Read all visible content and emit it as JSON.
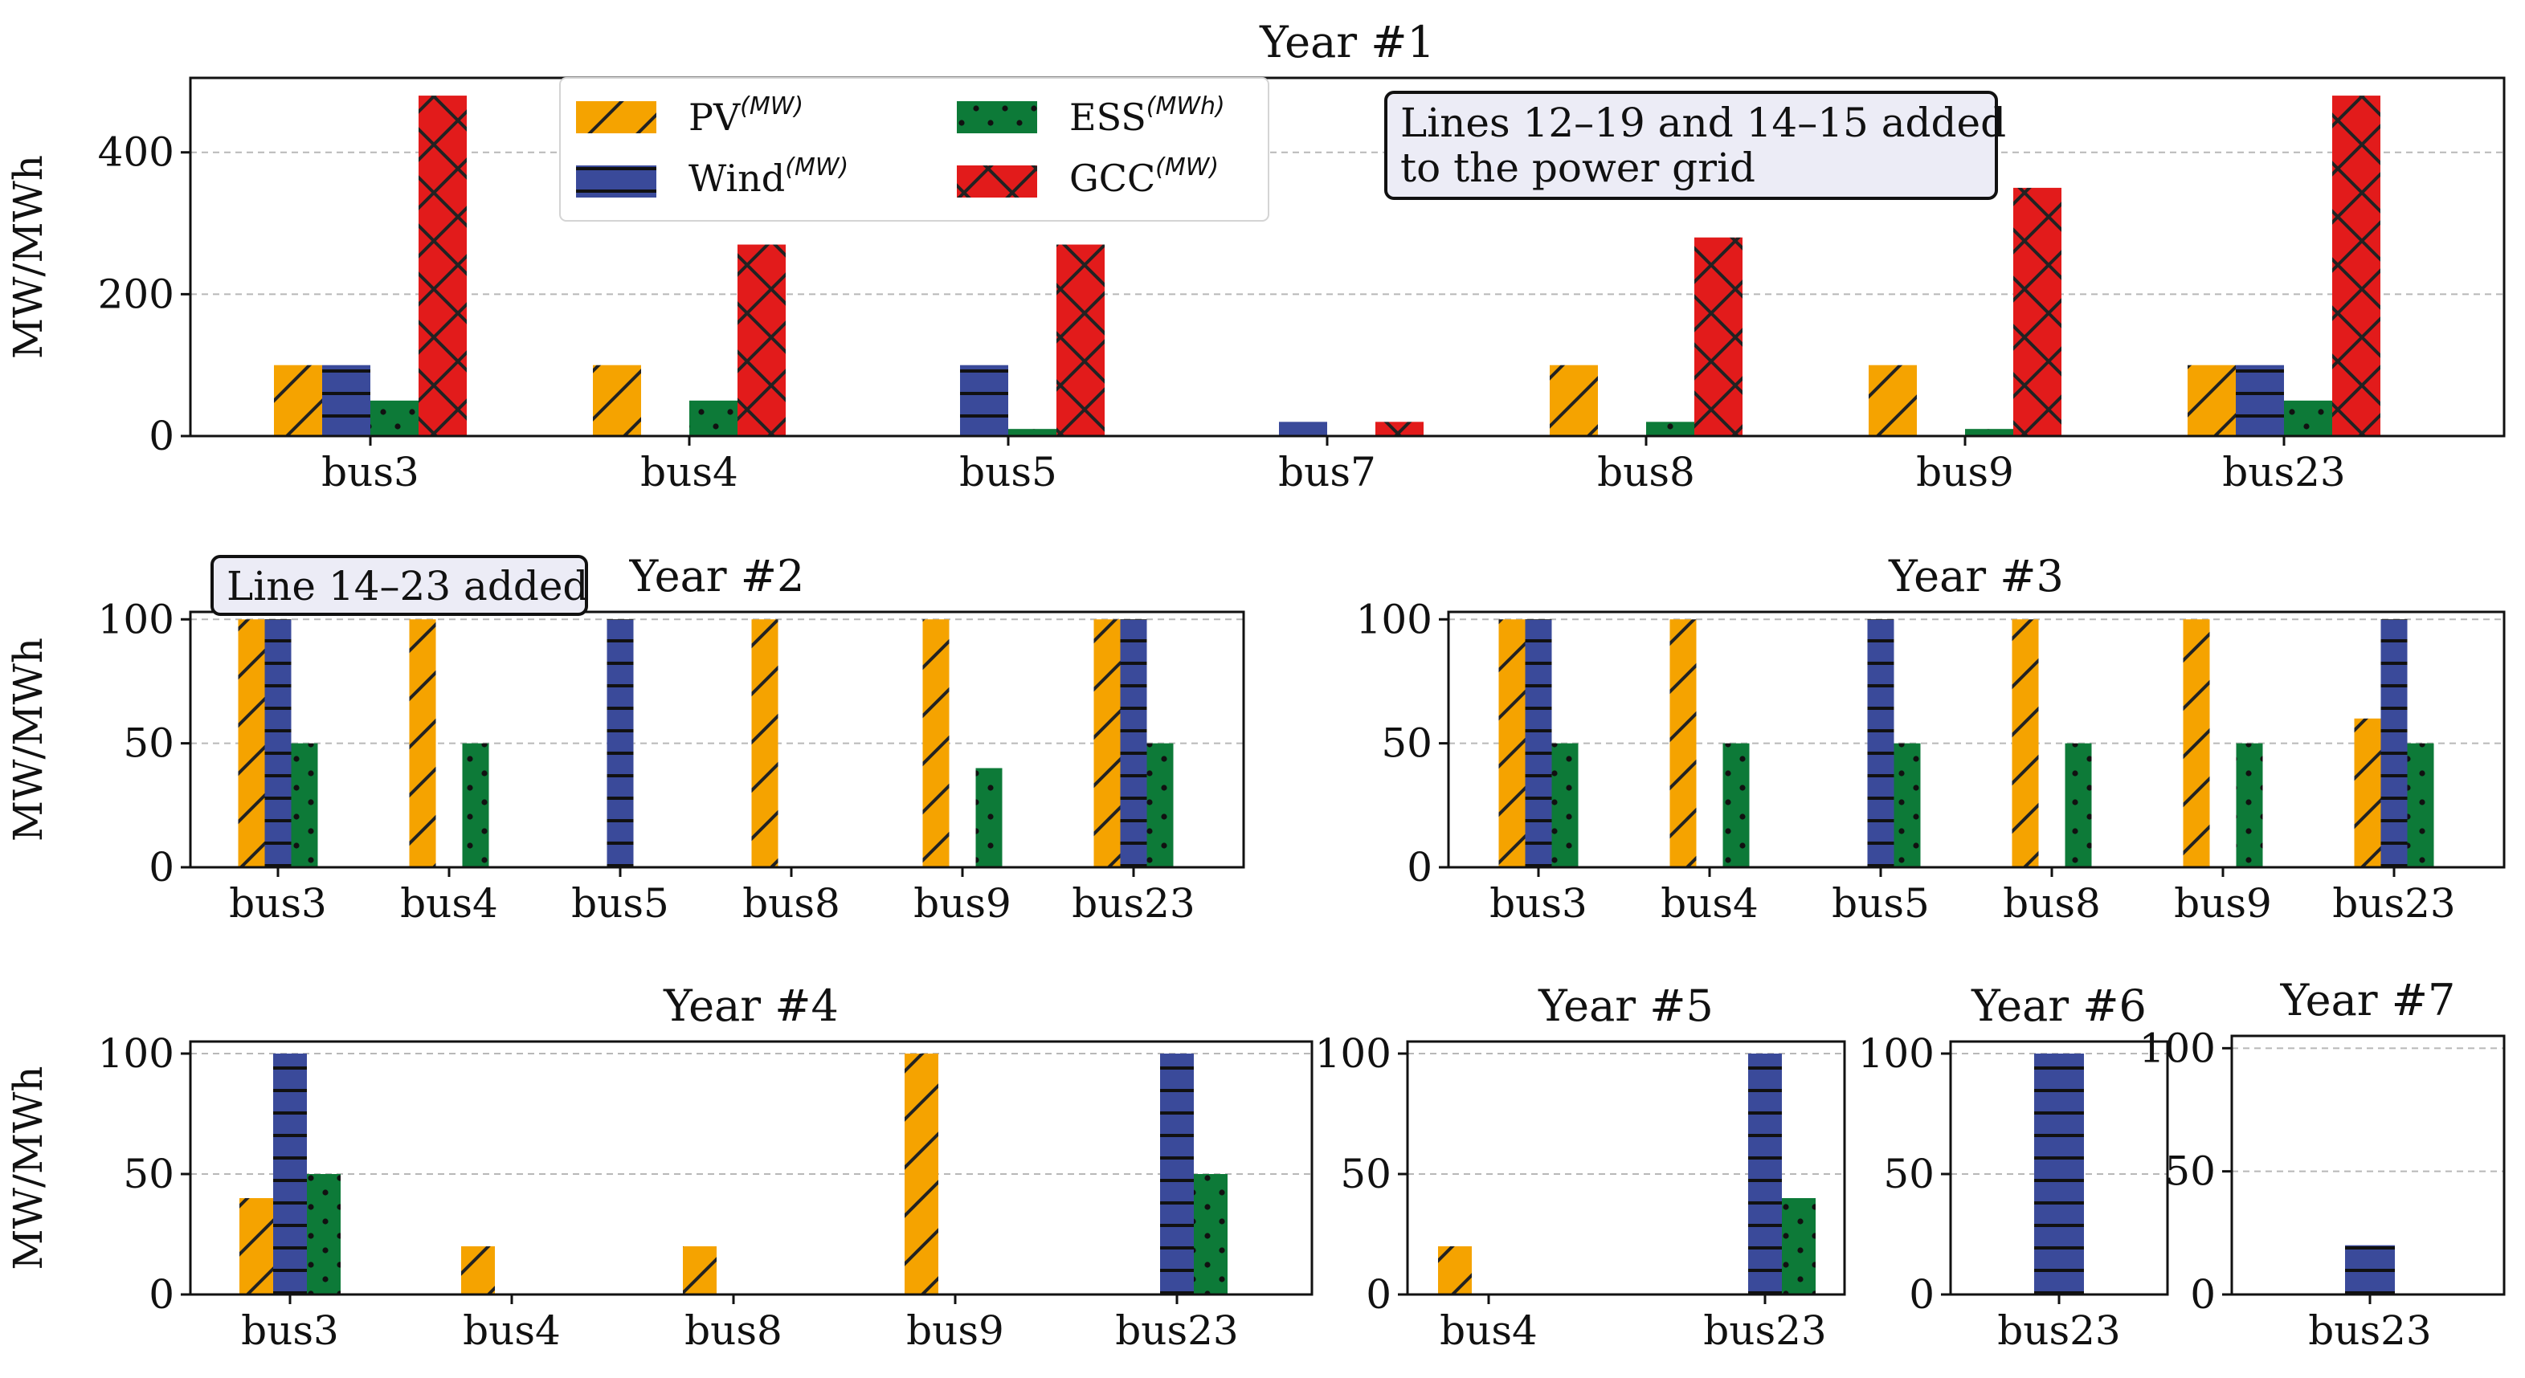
{
  "colors": {
    "PV": "#f5a300",
    "Wind": "#3a4a9a",
    "ESS": "#0d7a38",
    "GCC": "#e21b1b"
  },
  "legend": [
    {
      "key": "PV",
      "label": "PV",
      "unit": "(MW)"
    },
    {
      "key": "Wind",
      "label": "Wind",
      "unit": "(MW)"
    },
    {
      "key": "ESS",
      "label": "ESS",
      "unit": "(MWh)"
    },
    {
      "key": "GCC",
      "label": "GCC",
      "unit": "(MW)"
    }
  ],
  "annotations": {
    "year1": [
      "Lines 12–19 and 14–15 added",
      "to the power grid"
    ],
    "year2": "Line 14–23 added"
  },
  "chart_data": [
    {
      "type": "bar",
      "title": "Year #1",
      "ylabel": "MW/MWh",
      "ylim": [
        0,
        505
      ],
      "yticks": [
        0,
        200,
        400
      ],
      "categories": [
        "bus3",
        "bus4",
        "bus5",
        "bus7",
        "bus8",
        "bus9",
        "bus23"
      ],
      "series": [
        {
          "name": "PV",
          "values": [
            100,
            100,
            0,
            0,
            100,
            100,
            100
          ]
        },
        {
          "name": "Wind",
          "values": [
            100,
            0,
            100,
            20,
            0,
            0,
            100
          ]
        },
        {
          "name": "ESS",
          "values": [
            50,
            50,
            10,
            0,
            20,
            10,
            50
          ]
        },
        {
          "name": "GCC",
          "values": [
            480,
            270,
            270,
            20,
            280,
            350,
            480
          ]
        }
      ]
    },
    {
      "type": "bar",
      "title": "Year #2",
      "ylabel": "MW/MWh",
      "ylim": [
        0,
        103
      ],
      "yticks": [
        0,
        50,
        100
      ],
      "categories": [
        "bus3",
        "bus4",
        "bus5",
        "bus8",
        "bus9",
        "bus23"
      ],
      "series": [
        {
          "name": "PV",
          "values": [
            100,
            100,
            0,
            100,
            100,
            100
          ]
        },
        {
          "name": "Wind",
          "values": [
            100,
            0,
            100,
            0,
            0,
            100
          ]
        },
        {
          "name": "ESS",
          "values": [
            50,
            50,
            0,
            0,
            40,
            50
          ]
        }
      ]
    },
    {
      "type": "bar",
      "title": "Year #3",
      "ylabel": "",
      "ylim": [
        0,
        103
      ],
      "yticks": [
        0,
        50,
        100
      ],
      "categories": [
        "bus3",
        "bus4",
        "bus5",
        "bus8",
        "bus9",
        "bus23"
      ],
      "series": [
        {
          "name": "PV",
          "values": [
            100,
            100,
            0,
            100,
            100,
            60
          ]
        },
        {
          "name": "Wind",
          "values": [
            100,
            0,
            100,
            0,
            0,
            100
          ]
        },
        {
          "name": "ESS",
          "values": [
            50,
            50,
            50,
            50,
            50,
            50
          ]
        }
      ]
    },
    {
      "type": "bar",
      "title": "Year #4",
      "ylabel": "MW/MWh",
      "ylim": [
        0,
        105
      ],
      "yticks": [
        0,
        50,
        100
      ],
      "categories": [
        "bus3",
        "bus4",
        "bus8",
        "bus9",
        "bus23"
      ],
      "series": [
        {
          "name": "PV",
          "values": [
            40,
            20,
            20,
            100,
            0
          ]
        },
        {
          "name": "Wind",
          "values": [
            100,
            0,
            0,
            0,
            100
          ]
        },
        {
          "name": "ESS",
          "values": [
            50,
            0,
            0,
            0,
            50
          ]
        }
      ]
    },
    {
      "type": "bar",
      "title": "Year #5",
      "ylabel": "",
      "ylim": [
        0,
        105
      ],
      "yticks": [
        0,
        50,
        100
      ],
      "categories": [
        "bus4",
        "bus23"
      ],
      "series": [
        {
          "name": "PV",
          "values": [
            20,
            0
          ]
        },
        {
          "name": "Wind",
          "values": [
            0,
            100
          ]
        },
        {
          "name": "ESS",
          "values": [
            0,
            40
          ]
        }
      ]
    },
    {
      "type": "bar",
      "title": "Year #6",
      "ylabel": "",
      "ylim": [
        0,
        105
      ],
      "yticks": [
        0,
        50,
        100
      ],
      "categories": [
        "bus23"
      ],
      "series": [
        {
          "name": "Wind",
          "values": [
            100
          ]
        }
      ]
    },
    {
      "type": "bar",
      "title": "Year #7",
      "ylabel": "",
      "ylim": [
        0,
        105
      ],
      "yticks": [
        0,
        50,
        100
      ],
      "categories": [
        "bus23"
      ],
      "series": [
        {
          "name": "Wind",
          "values": [
            20
          ]
        }
      ]
    }
  ]
}
